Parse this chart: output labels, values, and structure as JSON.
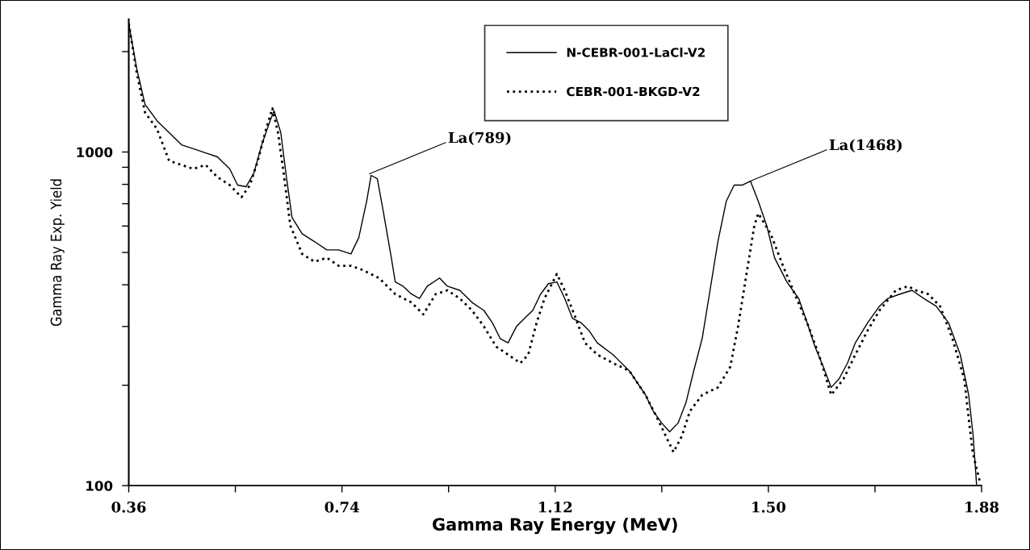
{
  "chart_data": {
    "type": "line",
    "xlabel": "Gamma Ray Energy (MeV)",
    "ylabel": "Gamma Ray Exp. Yield",
    "log": "y",
    "xlim": [
      0.36,
      1.88
    ],
    "ylim": [
      100,
      2500
    ],
    "xticks": [
      0.36,
      {
        "value": 0.55,
        "label": null
      },
      0.74,
      {
        "value": 0.93,
        "label": null
      },
      1.12,
      {
        "value": 1.31,
        "label": null
      },
      {
        "value": 1.5,
        "label": "1.50"
      },
      {
        "value": 1.69,
        "label": null
      },
      1.88
    ],
    "yticks": [
      100,
      {
        "value": 200,
        "label": null
      },
      {
        "value": 300,
        "label": null
      },
      {
        "value": 400,
        "label": null
      },
      {
        "value": 500,
        "label": null
      },
      {
        "value": 600,
        "label": null
      },
      {
        "value": 700,
        "label": null
      },
      {
        "value": 800,
        "label": null
      },
      {
        "value": 900,
        "label": null
      },
      1000,
      {
        "value": 2000,
        "label": null
      }
    ],
    "grid": false,
    "legend": "top",
    "marker": "none",
    "series": [
      {
        "name": "N-CEBR-001-LaCl-V2",
        "color": "#000000",
        "line_style": "solid",
        "x": [
          0.36,
          0.374,
          0.389,
          0.41,
          0.432,
          0.454,
          0.475,
          0.497,
          0.518,
          0.54,
          0.554,
          0.569,
          0.583,
          0.597,
          0.612,
          0.619,
          0.631,
          0.641,
          0.651,
          0.669,
          0.691,
          0.713,
          0.734,
          0.756,
          0.77,
          0.784,
          0.792,
          0.803,
          0.813,
          0.828,
          0.835,
          0.849,
          0.864,
          0.878,
          0.892,
          0.914,
          0.928,
          0.95,
          0.972,
          0.993,
          1.008,
          1.022,
          1.036,
          1.051,
          1.065,
          1.08,
          1.094,
          1.108,
          1.123,
          1.137,
          1.151,
          1.166,
          1.18,
          1.195,
          1.223,
          1.252,
          1.281,
          1.295,
          1.31,
          1.324,
          1.339,
          1.353,
          1.367,
          1.382,
          1.396,
          1.41,
          1.425,
          1.439,
          1.454,
          1.468,
          1.482,
          1.497,
          1.511,
          1.533,
          1.554,
          1.569,
          1.583,
          1.598,
          1.612,
          1.626,
          1.641,
          1.655,
          1.677,
          1.698,
          1.713,
          1.734,
          1.756,
          1.777,
          1.799,
          1.821,
          1.842,
          1.857,
          1.865,
          1.871
        ],
        "values": [
          2427,
          1786,
          1390,
          1243,
          1143,
          1051,
          1023,
          994,
          967,
          890,
          796,
          787,
          865,
          1051,
          1243,
          1329,
          1143,
          841,
          637,
          569,
          539,
          509,
          509,
          495,
          554,
          712,
          851,
          832,
          673,
          482,
          408,
          396,
          375,
          364,
          396,
          419,
          396,
          385,
          354,
          335,
          308,
          276,
          268,
          300,
          317,
          335,
          375,
          403,
          408,
          364,
          317,
          308,
          292,
          268,
          247,
          221,
          187,
          167,
          154,
          145,
          154,
          177,
          221,
          276,
          385,
          539,
          712,
          796,
          796,
          818,
          712,
          602,
          482,
          408,
          364,
          308,
          261,
          227,
          197,
          209,
          233,
          268,
          308,
          345,
          364,
          375,
          385,
          364,
          345,
          308,
          247,
          187,
          141,
          101
        ]
      },
      {
        "name": "CEBR-001-BKGD-V2",
        "color": "#000000",
        "line_style": "dotted",
        "x": [
          0.36,
          0.374,
          0.389,
          0.41,
          0.432,
          0.454,
          0.475,
          0.497,
          0.518,
          0.54,
          0.561,
          0.576,
          0.59,
          0.605,
          0.616,
          0.626,
          0.636,
          0.648,
          0.669,
          0.691,
          0.713,
          0.734,
          0.756,
          0.777,
          0.806,
          0.835,
          0.864,
          0.885,
          0.907,
          0.928,
          0.95,
          0.972,
          0.993,
          1.015,
          1.036,
          1.058,
          1.072,
          1.087,
          1.101,
          1.123,
          1.137,
          1.154,
          1.173,
          1.195,
          1.223,
          1.252,
          1.281,
          1.303,
          1.317,
          1.331,
          1.346,
          1.36,
          1.382,
          1.41,
          1.432,
          1.446,
          1.461,
          1.475,
          1.482,
          1.504,
          1.526,
          1.547,
          1.569,
          1.59,
          1.612,
          1.634,
          1.655,
          1.677,
          1.698,
          1.727,
          1.749,
          1.763,
          1.785,
          1.806,
          1.828,
          1.849,
          1.864,
          1.878
        ],
        "values": [
          2427,
          1737,
          1314,
          1175,
          941,
          915,
          890,
          915,
          841,
          796,
          732,
          796,
          941,
          1175,
          1352,
          1143,
          865,
          602,
          495,
          469,
          482,
          456,
          456,
          443,
          419,
          375,
          354,
          326,
          375,
          385,
          364,
          335,
          300,
          261,
          247,
          233,
          247,
          308,
          364,
          431,
          385,
          326,
          268,
          247,
          233,
          221,
          187,
          158,
          141,
          126,
          141,
          167,
          187,
          197,
          227,
          300,
          431,
          602,
          655,
          569,
          456,
          375,
          308,
          247,
          187,
          209,
          247,
          292,
          335,
          385,
          396,
          385,
          375,
          345,
          276,
          209,
          126,
          101
        ]
      }
    ],
    "annotations": [
      {
        "text": "La(789)",
        "x": 0.789,
        "y": 860
      },
      {
        "text": "La(1468)",
        "x": 1.468,
        "y": 818
      }
    ]
  }
}
